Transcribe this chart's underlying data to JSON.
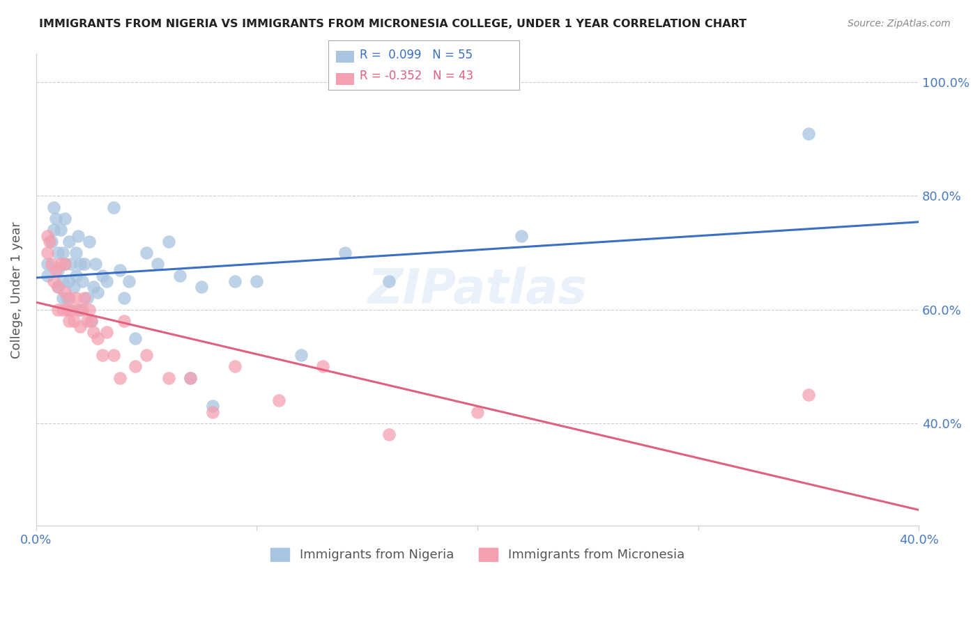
{
  "title": "IMMIGRANTS FROM NIGERIA VS IMMIGRANTS FROM MICRONESIA COLLEGE, UNDER 1 YEAR CORRELATION CHART",
  "source": "Source: ZipAtlas.com",
  "ylabel": "College, Under 1 year",
  "ytick_labels": [
    "100.0%",
    "80.0%",
    "60.0%",
    "40.0%"
  ],
  "ytick_values": [
    1.0,
    0.8,
    0.6,
    0.4
  ],
  "xlim": [
    0.0,
    0.4
  ],
  "ylim": [
    0.22,
    1.05
  ],
  "nigeria_R": 0.099,
  "nigeria_N": 55,
  "micronesia_R": -0.352,
  "micronesia_N": 43,
  "nigeria_color": "#a8c4e0",
  "micronesia_color": "#f4a0b0",
  "nigeria_line_color": "#3a6fc4",
  "micronesia_line_color": "#e06080",
  "legend_label_nigeria": "Immigrants from Nigeria",
  "legend_label_micronesia": "Immigrants from Micronesia",
  "nigeria_scatter_x": [
    0.005,
    0.005,
    0.007,
    0.008,
    0.008,
    0.009,
    0.01,
    0.01,
    0.01,
    0.011,
    0.012,
    0.012,
    0.012,
    0.013,
    0.013,
    0.014,
    0.015,
    0.015,
    0.015,
    0.016,
    0.017,
    0.018,
    0.018,
    0.019,
    0.02,
    0.02,
    0.021,
    0.022,
    0.023,
    0.024,
    0.025,
    0.026,
    0.027,
    0.028,
    0.03,
    0.032,
    0.035,
    0.038,
    0.04,
    0.042,
    0.045,
    0.05,
    0.055,
    0.06,
    0.065,
    0.07,
    0.075,
    0.08,
    0.09,
    0.1,
    0.12,
    0.14,
    0.16,
    0.22,
    0.35
  ],
  "nigeria_scatter_y": [
    0.66,
    0.68,
    0.72,
    0.74,
    0.78,
    0.76,
    0.64,
    0.67,
    0.7,
    0.74,
    0.62,
    0.65,
    0.7,
    0.68,
    0.76,
    0.62,
    0.6,
    0.65,
    0.72,
    0.68,
    0.64,
    0.66,
    0.7,
    0.73,
    0.6,
    0.68,
    0.65,
    0.68,
    0.62,
    0.72,
    0.58,
    0.64,
    0.68,
    0.63,
    0.66,
    0.65,
    0.78,
    0.67,
    0.62,
    0.65,
    0.55,
    0.7,
    0.68,
    0.72,
    0.66,
    0.48,
    0.64,
    0.43,
    0.65,
    0.65,
    0.52,
    0.7,
    0.65,
    0.73,
    0.91
  ],
  "micronesia_scatter_x": [
    0.005,
    0.005,
    0.006,
    0.007,
    0.008,
    0.009,
    0.01,
    0.01,
    0.011,
    0.012,
    0.013,
    0.013,
    0.014,
    0.015,
    0.015,
    0.016,
    0.017,
    0.018,
    0.019,
    0.02,
    0.021,
    0.022,
    0.023,
    0.024,
    0.025,
    0.026,
    0.028,
    0.03,
    0.032,
    0.035,
    0.038,
    0.04,
    0.045,
    0.05,
    0.06,
    0.07,
    0.08,
    0.09,
    0.11,
    0.13,
    0.16,
    0.2,
    0.35
  ],
  "micronesia_scatter_y": [
    0.7,
    0.73,
    0.72,
    0.68,
    0.65,
    0.67,
    0.6,
    0.64,
    0.68,
    0.6,
    0.63,
    0.68,
    0.6,
    0.58,
    0.62,
    0.6,
    0.58,
    0.62,
    0.6,
    0.57,
    0.6,
    0.62,
    0.58,
    0.6,
    0.58,
    0.56,
    0.55,
    0.52,
    0.56,
    0.52,
    0.48,
    0.58,
    0.5,
    0.52,
    0.48,
    0.48,
    0.42,
    0.5,
    0.44,
    0.5,
    0.38,
    0.42,
    0.45
  ],
  "background_color": "#ffffff",
  "grid_color": "#cccccc",
  "title_color": "#222222",
  "tick_label_color": "#4a7abf",
  "ylabel_color": "#555555"
}
